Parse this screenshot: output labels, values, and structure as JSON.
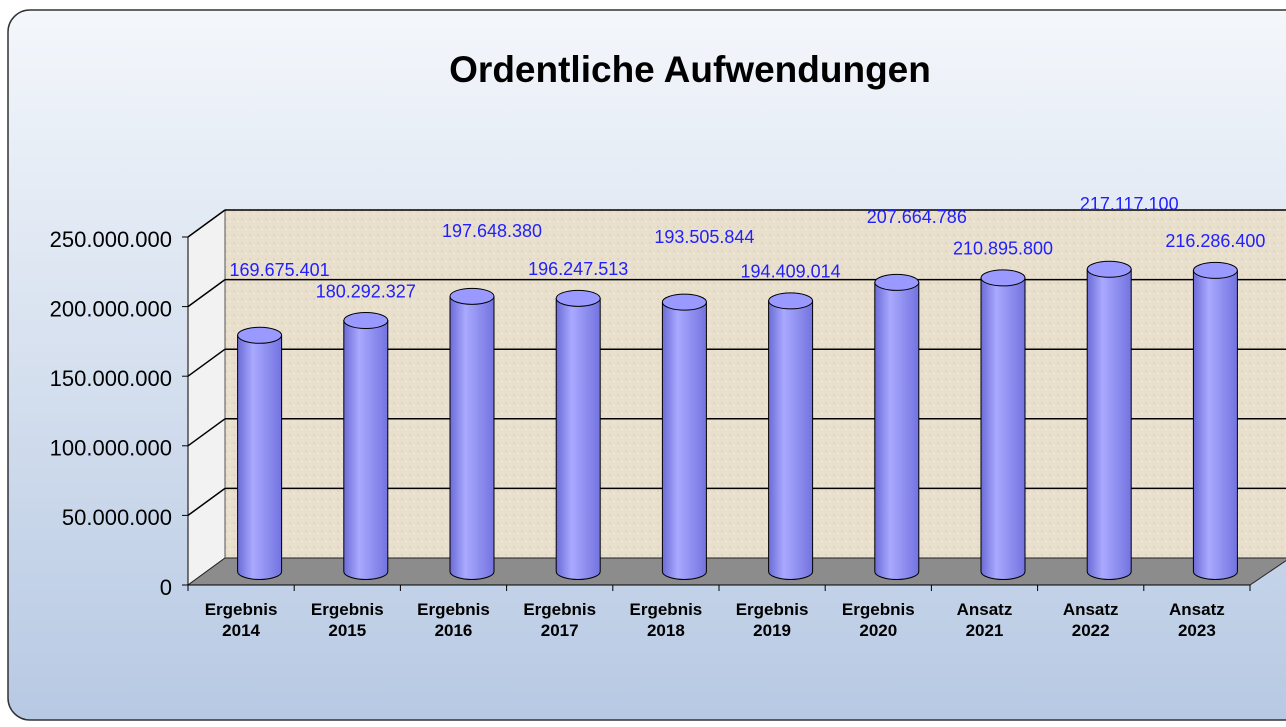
{
  "chart_data": {
    "type": "bar3d",
    "title": "Ordentliche Aufwendungen",
    "categories": [
      "Ergebnis\n2014",
      "Ergebnis\n2015",
      "Ergebnis\n2016",
      "Ergebnis\n2017",
      "Ergebnis\n2018",
      "Ergebnis\n2019",
      "Ergebnis\n2020",
      "Ansatz\n2021",
      "Ansatz\n2022",
      "Ansatz\n2023"
    ],
    "values": [
      169675401,
      180292327,
      197648380,
      196247513,
      193505844,
      194409014,
      207664786,
      210895800,
      217117100,
      216286400
    ],
    "value_labels": [
      "169.675.401",
      "180.292.327",
      "197.648.380",
      "196.247.513",
      "193.505.844",
      "194.409.014",
      "207.664.786",
      "210.895.800",
      "217.117.100",
      "216.286.400"
    ],
    "color": "#9999ff",
    "label_color": "#1f1fff",
    "ylim": [
      0,
      250000000
    ],
    "yticks": [
      0,
      {
        "value": 50000000,
        "label": "50.000.000"
      },
      {
        "value": 100000000,
        "label": "100.000.000"
      },
      {
        "value": 150000000,
        "label": "150.000.000"
      },
      {
        "value": 200000000,
        "label": "200.000.000"
      },
      {
        "value": 250000000,
        "label": "250.000.000"
      }
    ],
    "grid": true
  }
}
